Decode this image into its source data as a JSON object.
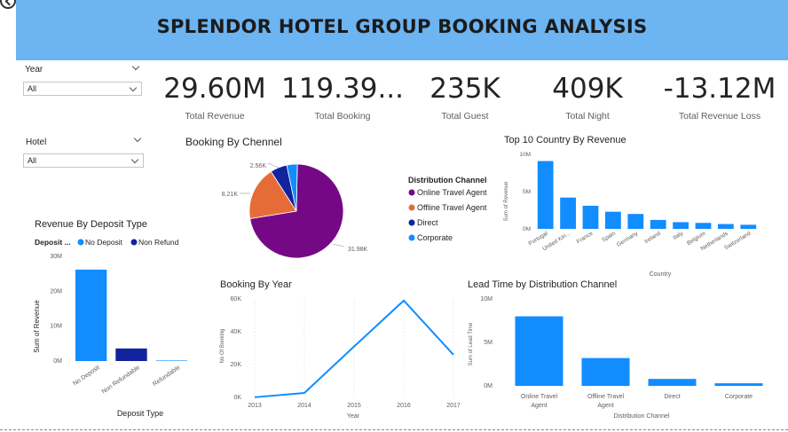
{
  "header": {
    "title": "SPLENDOR HOTEL GROUP BOOKING ANALYSIS",
    "bg_color": "#6cb4f2"
  },
  "filters": {
    "year": {
      "label": "Year",
      "value": "All"
    },
    "hotel": {
      "label": "Hotel",
      "value": "All"
    }
  },
  "kpis": [
    {
      "value": "29.60M",
      "label": "Total  Revenue"
    },
    {
      "value": "119.39...",
      "label": "Total Booking"
    },
    {
      "value": "235K",
      "label": "Total Guest"
    },
    {
      "value": "409K",
      "label": "Total Night"
    },
    {
      "value": "-13.12M",
      "label": "Total Revenue Loss"
    }
  ],
  "colors": {
    "blue": "#118dff",
    "dark_blue": "#12239e",
    "purple": "#750985",
    "orange": "#e66c37",
    "navy": "#12239e"
  },
  "chart_data": [
    {
      "id": "booking-by-channel",
      "type": "pie",
      "title": "Booking By Chennel",
      "legend_title": "Distribution Channel",
      "slices": [
        {
          "name": "Online Travel Agent",
          "value": 31980,
          "label": "31.98K",
          "color": "#750985"
        },
        {
          "name": "Offline Travel Agent",
          "value": 8210,
          "label": "8.21K",
          "color": "#e66c37"
        },
        {
          "name": "Direct",
          "value": 2560,
          "label": "2.56K",
          "color": "#12239e"
        },
        {
          "name": "Corporate",
          "value": 1600,
          "label": "",
          "color": "#118dff"
        }
      ]
    },
    {
      "id": "top10-country",
      "type": "bar",
      "title": "Top 10 Country By Revenue",
      "xlabel": "Country",
      "ylabel": "Sum of Revenue",
      "ylim": [
        0,
        10
      ],
      "yticks": [
        "0M",
        "5M",
        "10M"
      ],
      "categories": [
        "Portugal",
        "United Kin...",
        "France",
        "Spain",
        "Germany",
        "Ireland",
        "Italy",
        "Belgium",
        "Netherlands",
        "Switzerland"
      ],
      "tick_labels": [
        "Portugal",
        "United Kin...",
        "France",
        "Spain",
        "Germany",
        "Ireland",
        "Italy",
        "Belgium",
        "Netherlands",
        "Switzerland"
      ],
      "values": [
        9.1,
        4.2,
        3.1,
        2.3,
        2.0,
        1.2,
        0.9,
        0.8,
        0.65,
        0.55
      ]
    },
    {
      "id": "revenue-by-deposit",
      "type": "bar",
      "title": "Revenue By Deposit Type",
      "legend_title": "Deposit ...",
      "legend": [
        {
          "name": "No Deposit",
          "color": "#118dff"
        },
        {
          "name": "Non Refund",
          "color": "#12239e"
        }
      ],
      "xlabel": "Deposit Type",
      "ylabel": "Sum of Revenue",
      "ylim": [
        0,
        30
      ],
      "yticks": [
        "0M",
        "10M",
        "20M",
        "30M"
      ],
      "categories": [
        "No Deposit",
        "Non Refundable",
        "Refundable"
      ],
      "values": [
        26.2,
        3.6,
        0.1
      ],
      "bar_colors": [
        "#118dff",
        "#12239e",
        "#118dff"
      ]
    },
    {
      "id": "booking-by-year",
      "type": "line",
      "title": "Booking By Year",
      "xlabel": "Year",
      "ylabel": "No Of Booking",
      "ylim": [
        0,
        60
      ],
      "yticks": [
        "0K",
        "20K",
        "40K",
        "60K"
      ],
      "x": [
        "2013",
        "2014",
        "2015",
        "2016",
        "2017"
      ],
      "values": [
        0.1,
        2.7,
        31,
        59,
        26
      ]
    },
    {
      "id": "lead-time",
      "type": "bar",
      "title": "Lead Time by Distribution Channel",
      "xlabel": "Distribution Channel",
      "ylabel": "Sum of Lead Time",
      "ylim": [
        0,
        10
      ],
      "yticks": [
        "0M",
        "5M",
        "10M"
      ],
      "categories": [
        "Online Travel Agent",
        "Offline Travel Agent",
        "Direct",
        "Corporate"
      ],
      "tick_lines": [
        [
          "Online Travel",
          "Agent"
        ],
        [
          "Offline Travel",
          "Agent"
        ],
        [
          "Direct"
        ],
        [
          "Corporate"
        ]
      ],
      "values": [
        8.0,
        3.2,
        0.8,
        0.3
      ]
    }
  ]
}
